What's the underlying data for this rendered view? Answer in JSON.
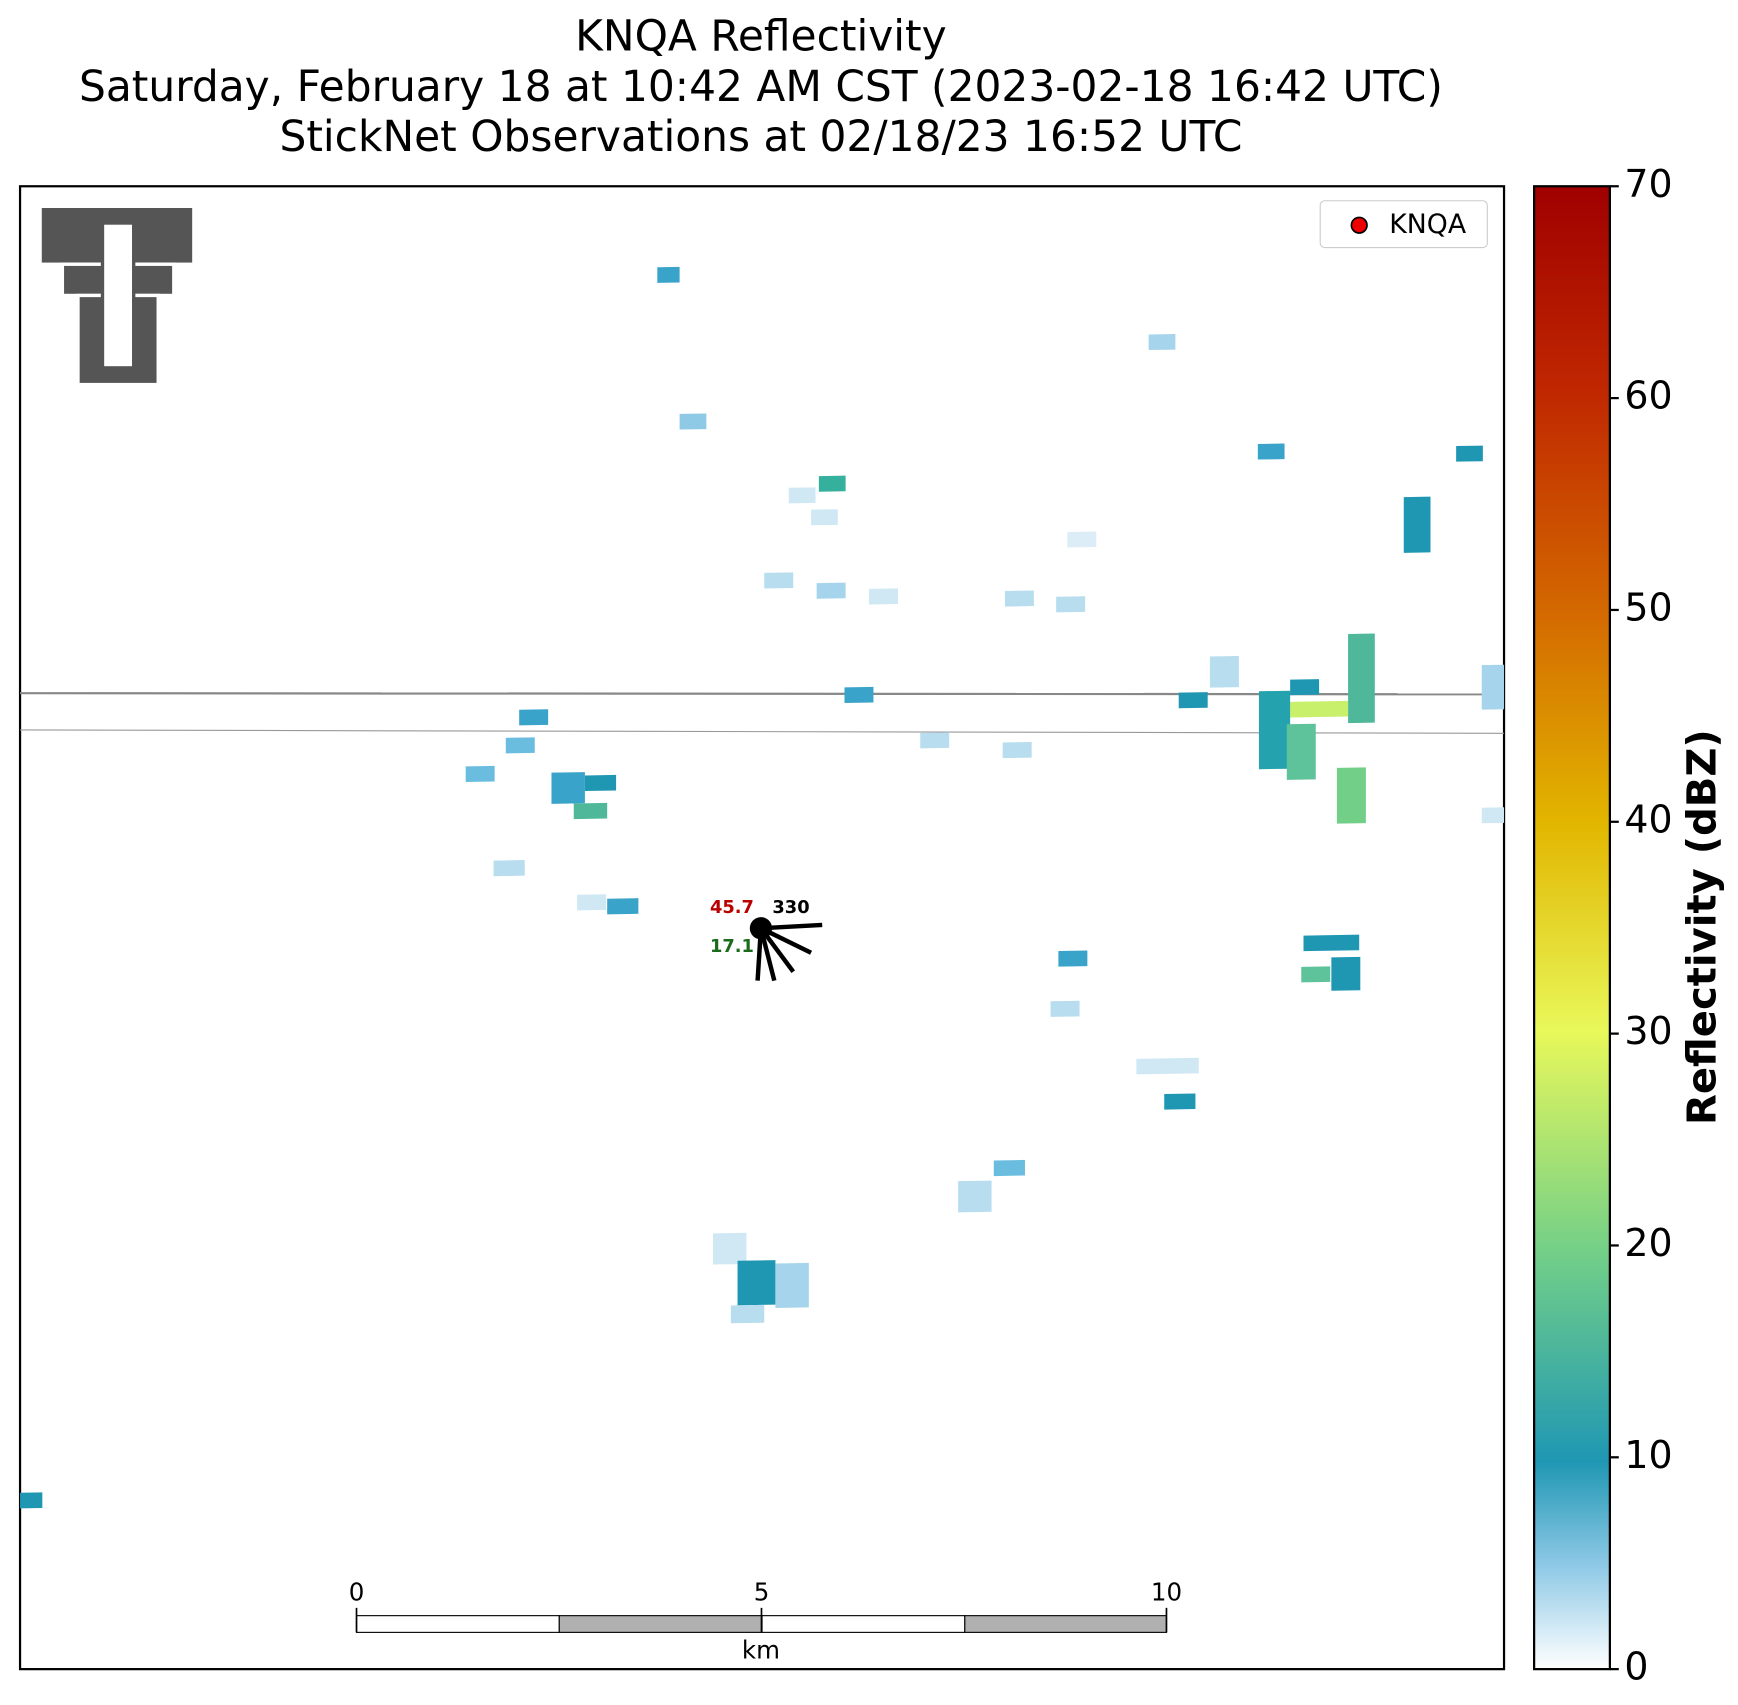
{
  "title": [
    "KNQA Reflectivity",
    "Saturday, February 18 at 10:42 AM CST (2023-02-18 16:42 UTC)",
    "StickNet Observations at 02/18/23 16:52 UTC"
  ],
  "legend": [
    "KNQA"
  ],
  "colorbar": {
    "label": "Reflectivity (dBZ)",
    "lim": [
      0,
      70
    ],
    "ticks": [
      0,
      10,
      20,
      30,
      40,
      50,
      60,
      70
    ]
  },
  "scale_bar": {
    "ticks": [
      0,
      5,
      10
    ],
    "unit": "km"
  },
  "station": {
    "temperature": 45.7,
    "direction": 330,
    "dewpoint": 17.1
  }
}
